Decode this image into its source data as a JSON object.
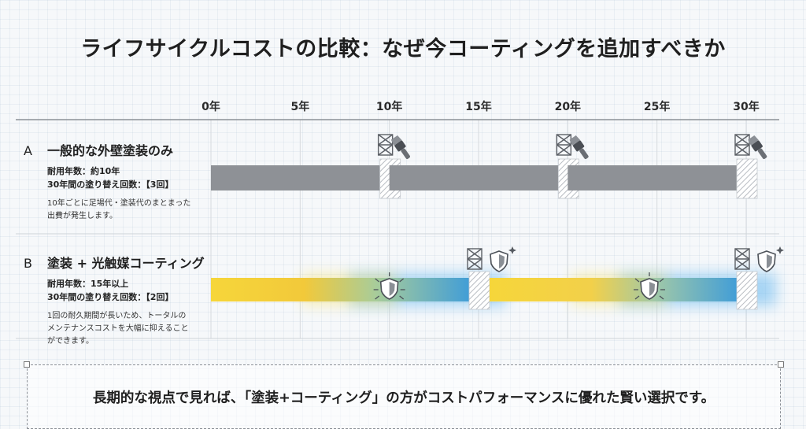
{
  "title": "ライフサイクルコストの比較：なぜ今コーティングを追加すべきか",
  "chart_data": {
    "type": "timeline",
    "x_ticks": [
      "0年",
      "5年",
      "10年",
      "15年",
      "20年",
      "25年",
      "30年"
    ],
    "x_values": [
      0,
      5,
      10,
      15,
      20,
      25,
      30
    ],
    "xlim": [
      0,
      30
    ],
    "rows": [
      {
        "id": "A",
        "letter": "A",
        "name": "一般的な外壁塗装のみ",
        "spec1": "耐用年数：約10年",
        "spec2": "30年間の塗り替え回数：【3回】",
        "note1": "10年ごとに足場代・塗装代のまとまった",
        "note2": "出費が発生します。",
        "repaint_years": [
          10,
          20,
          30
        ],
        "bar_color": "#8e9196"
      },
      {
        "id": "B",
        "letter": "B",
        "name": "塗装 + 光触媒コーティング",
        "spec1": "耐用年数：15年以上",
        "spec2": "30年間の塗り替え回数：【2回】",
        "note1": "1回の耐久期間が長いため、トータルの",
        "note2": "メンテナンスコストを大幅に抑えること",
        "note3": "ができます。",
        "repaint_years": [
          15,
          30
        ],
        "gradient_colors": [
          "#f4d02c",
          "#3fa0dc"
        ]
      }
    ]
  },
  "conclusion": "長期的な視点で見れば、「塗装+コーティング」の方がコストパフォーマンスに優れた賢い選択です。",
  "icons": {
    "scaffold": "scaffold-icon",
    "brush": "paint-brush-icon",
    "shield": "shield-icon",
    "sparkle": "sparkle-icon"
  }
}
